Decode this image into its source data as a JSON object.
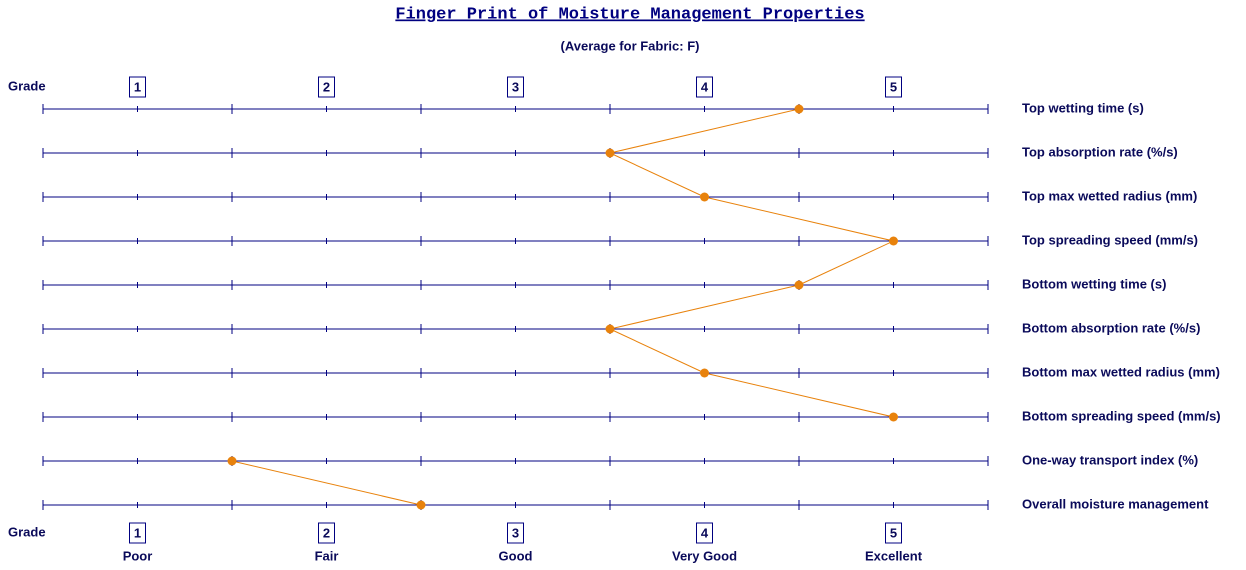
{
  "chart_data": {
    "type": "profile",
    "title": "Finger Print of Moisture Management Properties",
    "subtitle": "(Average for Fabric: F)",
    "grade_label": "Grade",
    "xlim": [
      0.5,
      5.5
    ],
    "xticks": [
      1,
      2,
      3,
      4,
      5
    ],
    "xminor_ticks": [
      0.5,
      1.5,
      2.5,
      3.5,
      4.5,
      5.5
    ],
    "xtick_descriptions": [
      "Poor",
      "Fair",
      "Good",
      "Very Good",
      "Excellent"
    ],
    "series": [
      {
        "color": "#e8820c",
        "categories": [
          "Top wetting time (s)",
          "Top absorption rate (%/s)",
          "Top max wetted radius (mm)",
          "Top spreading speed (mm/s)",
          "Bottom wetting time (s)",
          "Bottom absorption rate (%/s)",
          "Bottom max wetted radius (mm)",
          "Bottom spreading speed (mm/s)"
        ],
        "values": [
          4.5,
          3.5,
          4,
          5,
          4.5,
          3.5,
          4,
          5
        ]
      },
      {
        "color": "#e8820c",
        "categories": [
          "One-way transport index (%)",
          "Overall moisture management"
        ],
        "values": [
          1.5,
          2.5
        ]
      }
    ]
  }
}
